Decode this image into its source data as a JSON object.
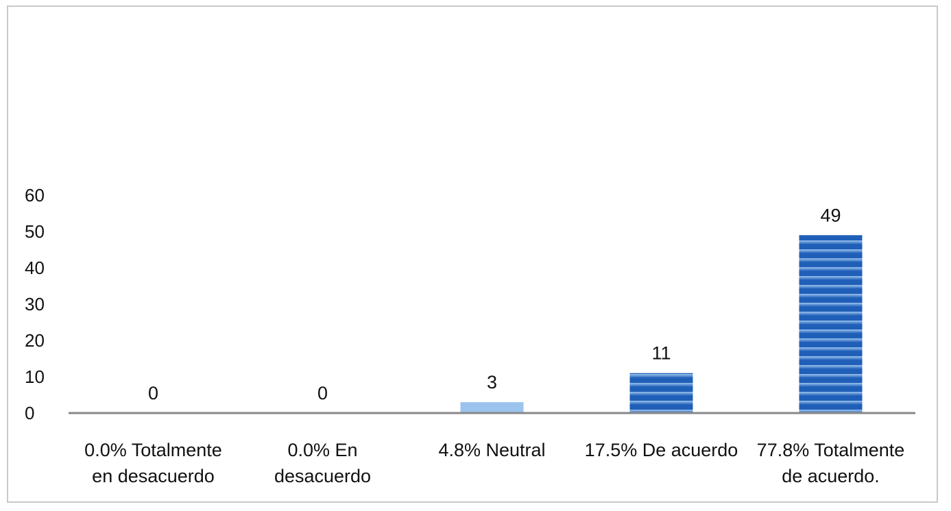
{
  "chart_data": {
    "type": "bar",
    "categories": [
      [
        "0.0% Totalmente",
        "en desacuerdo"
      ],
      [
        "0.0% En",
        "desacuerdo"
      ],
      [
        "4.8% Neutral"
      ],
      [
        "17.5% De acuerdo"
      ],
      [
        "77.8% Totalmente",
        "de acuerdo."
      ]
    ],
    "values": [
      0,
      0,
      3,
      11,
      49
    ],
    "data_labels": [
      "0",
      "0",
      "3",
      "11",
      "49"
    ],
    "title": "",
    "xlabel": "",
    "ylabel": "",
    "ylim": [
      0,
      60
    ],
    "yticks": [
      0,
      10,
      20,
      30,
      40,
      50,
      60
    ],
    "grid": false,
    "legend": "none",
    "colors": {
      "bar_dark": "#1f5fb8",
      "bar_light": "#9cc3ee",
      "axis": "#888888"
    }
  }
}
